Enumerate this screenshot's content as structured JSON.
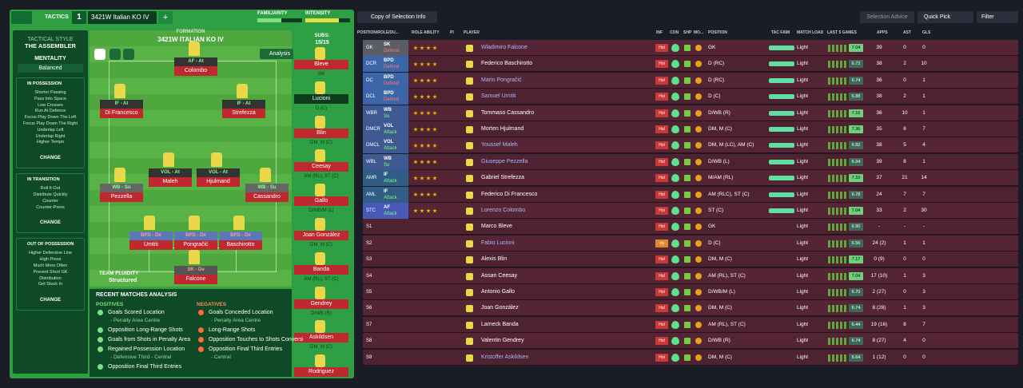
{
  "header": {
    "tab": "TACTICS",
    "slot": "1",
    "tactic_name": "3421W Italian KO IV",
    "add": "+",
    "familiarity": "FAMILIARITY",
    "intensity": "INTENSITY"
  },
  "sidebar": {
    "style_label": "TACTICAL STYLE",
    "style": "THE ASSEMBLER",
    "mentality_label": "MENTALITY",
    "mentality": "Balanced",
    "sections": [
      {
        "title": "IN POSSESSION",
        "items": [
          "Shorter Passing",
          "Pass Into Space",
          "Low Crosses",
          "Run At Defence",
          "Focus Play Down The Left",
          "Focus Play Down The Right",
          "Underlap Left",
          "Underlap Right",
          "Higher Tempo"
        ],
        "button": "CHANGE"
      },
      {
        "title": "IN TRANSITION",
        "items": [
          "Roll It Out",
          "Distribute Quickly",
          "Counter",
          "Counter-Press"
        ],
        "button": "CHANGE"
      },
      {
        "title": "OUT OF POSSESSION",
        "items": [
          "Higher Defensive Line",
          "High Press",
          "Much More Often",
          "Prevent Short GK",
          "Distribution",
          "Get Stuck In"
        ],
        "button": "CHANGE"
      }
    ]
  },
  "formation": {
    "label": "FORMATION",
    "name": "3421W ITALIAN KO IV",
    "analysis": "Analysis",
    "subs_label": "SUBS:",
    "subs_count": "15/15",
    "fluidity_label": "TEAM FLUIDITY",
    "fluidity": "Structured",
    "players": [
      {
        "role": "AF - At",
        "name": "Colombo"
      },
      {
        "role": "IF - At",
        "name": "Di Francesco"
      },
      {
        "role": "IF - At",
        "name": "Strefezza"
      },
      {
        "role": "VOL - At",
        "name": "Maleh"
      },
      {
        "role": "VOL - At",
        "name": "Hjulmand"
      },
      {
        "role": "WB - Su",
        "name": "Pezzella"
      },
      {
        "role": "WB - Su",
        "name": "Cassandro"
      },
      {
        "role": "BPD - De",
        "name": "Umtiti"
      },
      {
        "role": "BPD - De",
        "name": "Pongračić"
      },
      {
        "role": "BPD - De",
        "name": "Baschirotto"
      },
      {
        "role": "SK - De",
        "name": "Falcone"
      }
    ],
    "subs": [
      {
        "name": "Bleve",
        "pos": "GK"
      },
      {
        "name": "Lucioni",
        "pos": "D (C)"
      },
      {
        "name": "Blin",
        "pos": "DM, M (C)"
      },
      {
        "name": "Ceesay",
        "pos": "AM (RL), ST (C)"
      },
      {
        "name": "Gallo",
        "pos": "D/WB/M (L)"
      },
      {
        "name": "Joan González",
        "pos": "DM, M (C)"
      },
      {
        "name": "Banda",
        "pos": "AM (RL), ST (C)"
      },
      {
        "name": "Gendrey",
        "pos": "D/WB (R)"
      },
      {
        "name": "Askildsen",
        "pos": "DM, M (C)"
      },
      {
        "name": "Rodriguez",
        "pos": ""
      }
    ]
  },
  "analysis": {
    "title": "RECENT MATCHES ANALYSIS",
    "positives_label": "POSITIVES",
    "negatives_label": "NEGATIVES",
    "positives": [
      {
        "text": "Goals Scored Location",
        "detail": "- Penalty Area Centre"
      },
      {
        "text": "Opposition Long-Range Shots"
      },
      {
        "text": "Goals from Shots in Penalty Area"
      },
      {
        "text": "Regained Possession Location",
        "detail": "- Defensive Third - Central"
      },
      {
        "text": "Opposition Final Third Entries"
      }
    ],
    "negatives": [
      {
        "text": "Goals Conceded Location",
        "detail": "- Penalty Area Centre"
      },
      {
        "text": "Long-Range Shots"
      },
      {
        "text": "Opposition Touches to Shots Conversion"
      },
      {
        "text": "Opposition Final Third Entries",
        "detail": "- Central"
      }
    ]
  },
  "selection": {
    "view": "Copy of Selection Info",
    "advice": "Selection Advice",
    "quick_pick": "Quick Pick",
    "filter": "Filter",
    "columns": [
      "POSITION/ROLE/DU...",
      "ROLE ABILITY",
      "PI",
      "PLAYER",
      "INF",
      "CON",
      "SHP",
      "MO...",
      "POSITION",
      "TAC FAMI",
      "MATCH LOAD",
      "LAST 5 GAMES",
      "APPS",
      "AST",
      "GLS"
    ],
    "rows": [
      {
        "pos": "GK",
        "role": "SK",
        "duty": "Defend",
        "name": "Wladimiro Falcone",
        "inf": "Hol",
        "position": "GK",
        "load": "Light",
        "rating": "7.04",
        "apps": "39",
        "ast": "0",
        "gls": "0"
      },
      {
        "pos": "DCR",
        "role": "BPD",
        "duty": "Defend",
        "name": "Federico Baschirotto",
        "inf": "Hol",
        "position": "D (RC)",
        "load": "Light",
        "rating": "6.72",
        "apps": "38",
        "ast": "2",
        "gls": "10"
      },
      {
        "pos": "DC",
        "role": "BPD",
        "duty": "Defend",
        "name": "Marin Pongračić",
        "inf": "Hol",
        "position": "D (RC)",
        "load": "Light",
        "rating": "6.74",
        "apps": "36",
        "ast": "0",
        "gls": "1"
      },
      {
        "pos": "DCL",
        "role": "BPD",
        "duty": "Defend",
        "name": "Samuel Umtiti",
        "inf": "Hol",
        "position": "D (C)",
        "load": "Light",
        "rating": "6.88",
        "apps": "38",
        "ast": "2",
        "gls": "1"
      },
      {
        "pos": "WBR",
        "role": "WB",
        "duty": "Su",
        "name": "Tommaso Cassandro",
        "inf": "Hol",
        "position": "D/WB (R)",
        "load": "Light",
        "rating": "7.16",
        "apps": "36",
        "ast": "10",
        "gls": "1"
      },
      {
        "pos": "DMCR",
        "role": "VOL",
        "duty": "Attack",
        "name": "Morten Hjulmand",
        "inf": "Hol",
        "position": "DM, M (C)",
        "load": "Light",
        "rating": "7.36",
        "apps": "35",
        "ast": "6",
        "gls": "7"
      },
      {
        "pos": "DMCL",
        "role": "VOL",
        "duty": "Attack",
        "name": "Youssef Maleh",
        "inf": "Hol",
        "position": "DM, M (LC), AM (C)",
        "load": "Light",
        "rating": "6.82",
        "apps": "38",
        "ast": "5",
        "gls": "4"
      },
      {
        "pos": "WBL",
        "role": "WB",
        "duty": "Su",
        "name": "Giuseppe Pezzella",
        "inf": "Hol",
        "position": "D/WB (L)",
        "load": "Light",
        "rating": "6.94",
        "apps": "39",
        "ast": "8",
        "gls": "1"
      },
      {
        "pos": "AMR",
        "role": "IF",
        "duty": "Attack",
        "name": "Gabriel Strefezza",
        "inf": "Hol",
        "position": "M/AM (RL)",
        "load": "Light",
        "rating": "7.10",
        "apps": "37",
        "ast": "21",
        "gls": "14"
      },
      {
        "pos": "AML",
        "role": "IF",
        "duty": "Attack",
        "name": "Federico Di Francesco",
        "inf": "Hol",
        "position": "AM (RLC), ST (C)",
        "load": "Light",
        "rating": "6.78",
        "apps": "24",
        "ast": "7",
        "gls": "7"
      },
      {
        "pos": "STC",
        "role": "AF",
        "duty": "Attack",
        "name": "Lorenzo Colombo",
        "inf": "Hol",
        "position": "ST (C)",
        "load": "Light",
        "rating": "7.04",
        "apps": "33",
        "ast": "2",
        "gls": "30"
      },
      {
        "pos": "S1",
        "name": "Marco Bleve",
        "inf": "Hol",
        "position": "GK",
        "load": "Light",
        "rating": "6.90",
        "apps": "-",
        "ast": "-",
        "gls": "-"
      },
      {
        "pos": "S2",
        "name": "Fabio Lucioni",
        "inf": "Inj",
        "position": "D (C)",
        "load": "Light",
        "rating": "6.56",
        "apps": "24 (2)",
        "ast": "1",
        "gls": "1"
      },
      {
        "pos": "S3",
        "name": "Alexis Blin",
        "inf": "Hol",
        "position": "DM, M (C)",
        "load": "Light",
        "rating": "7.17",
        "apps": "0 (9)",
        "ast": "0",
        "gls": "0"
      },
      {
        "pos": "S4",
        "name": "Assan Ceesay",
        "inf": "Hol",
        "position": "AM (RL), ST (C)",
        "load": "Light",
        "rating": "7.04",
        "apps": "17 (10)",
        "ast": "1",
        "gls": "3"
      },
      {
        "pos": "S5",
        "name": "Antonio Gallo",
        "inf": "Hol",
        "position": "D/WB/M (L)",
        "load": "Light",
        "rating": "6.70",
        "apps": "2 (27)",
        "ast": "0",
        "gls": "3"
      },
      {
        "pos": "S6",
        "name": "Joan González",
        "inf": "Hol",
        "position": "DM, M (C)",
        "load": "Light",
        "rating": "6.74",
        "apps": "8 (28)",
        "ast": "1",
        "gls": "3"
      },
      {
        "pos": "S7",
        "name": "Lameck Banda",
        "inf": "Hol",
        "position": "AM (RL), ST (C)",
        "load": "Light",
        "rating": "6.44",
        "apps": "19 (16)",
        "ast": "8",
        "gls": "7"
      },
      {
        "pos": "S8",
        "name": "Valentin Gendrey",
        "inf": "Hol",
        "position": "D/WB (R)",
        "load": "Light",
        "rating": "6.74",
        "apps": "8 (27)",
        "ast": "4",
        "gls": "0"
      },
      {
        "pos": "S9",
        "name": "Kristoffer Askildsen",
        "inf": "Hol",
        "position": "DM, M (C)",
        "load": "Light",
        "rating": "6.64",
        "apps": "1 (12)",
        "ast": "0",
        "gls": "0"
      }
    ]
  }
}
